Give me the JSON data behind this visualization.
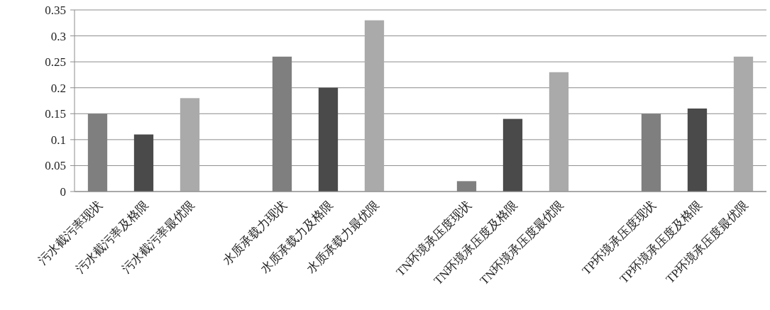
{
  "chart_data": {
    "type": "bar",
    "categories": [
      "污水截污率现状",
      "污水截污率及格限",
      "污水截污率最优限",
      null,
      "水质承载力现状",
      "水质承载力及格限",
      "水质承载力最优限",
      null,
      "TN环境承压度现状",
      "TN环境承压度及格限",
      "TN环境承压度最优限",
      null,
      "TP环境承压度现状",
      "TP环境承压度及格限",
      "TP环境承压度最优限"
    ],
    "values": [
      0.15,
      0.11,
      0.18,
      null,
      0.26,
      0.2,
      0.33,
      null,
      0.02,
      0.14,
      0.23,
      null,
      0.15,
      0.16,
      0.26
    ],
    "colors": [
      "#7f7f7f",
      "#4a4a4a",
      "#aaaaaa",
      null,
      "#7f7f7f",
      "#4a4a4a",
      "#aaaaaa",
      null,
      "#7f7f7f",
      "#4a4a4a",
      "#aaaaaa",
      null,
      "#7f7f7f",
      "#4a4a4a",
      "#aaaaaa"
    ],
    "ylim": [
      0,
      0.35
    ],
    "yticks": [
      0,
      0.05,
      0.1,
      0.15,
      0.2,
      0.25,
      0.3,
      0.35
    ],
    "grid": "y"
  }
}
